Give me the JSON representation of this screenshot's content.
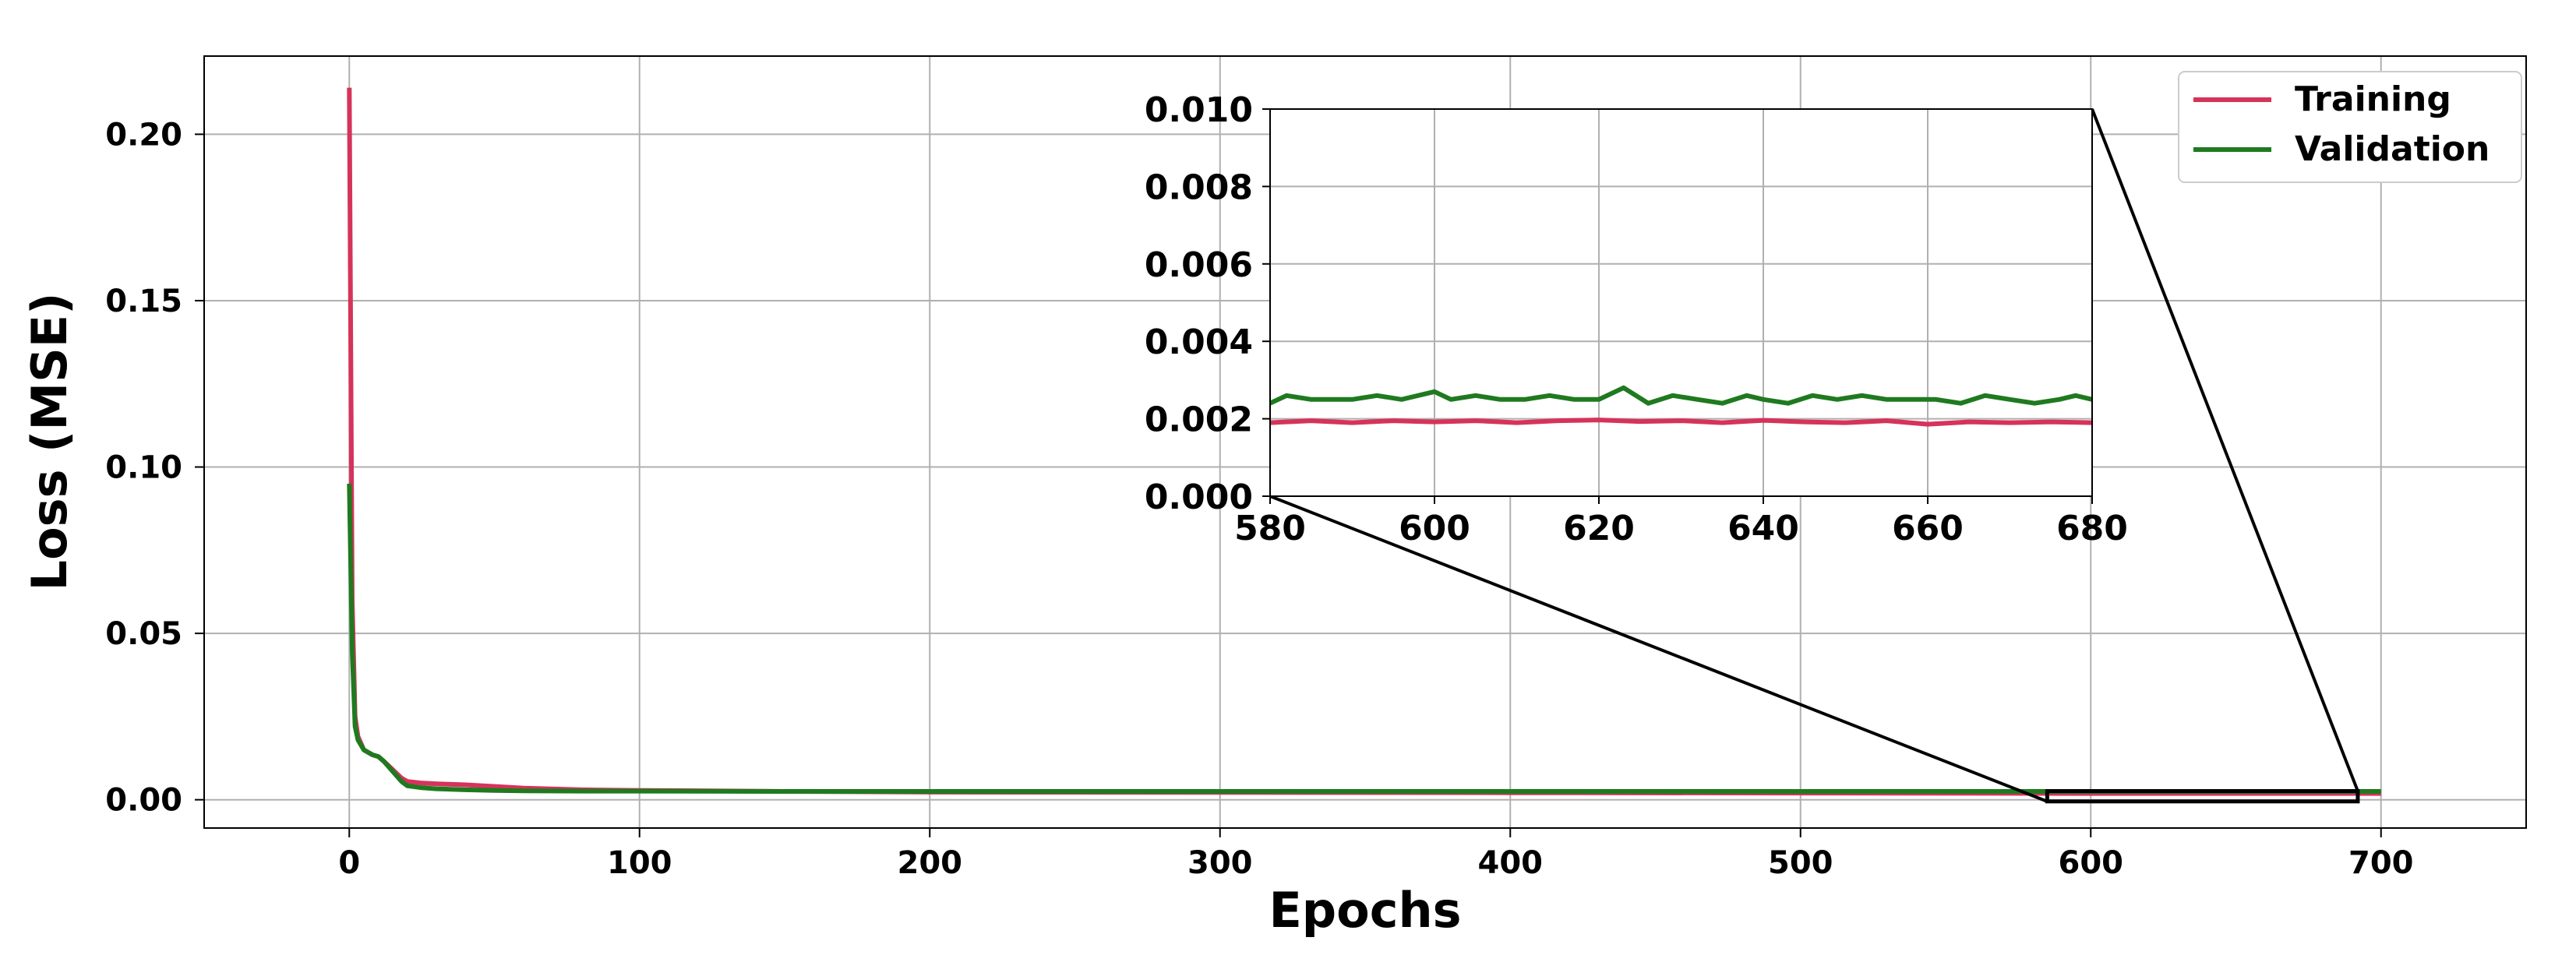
{
  "chart_data": {
    "type": "line",
    "title": "",
    "xlabel": "Epochs",
    "ylabel": "Loss (MSE)",
    "xlim": [
      -50,
      750
    ],
    "ylim": [
      -0.0085,
      0.2235
    ],
    "xticks": [
      0,
      100,
      200,
      300,
      400,
      500,
      600,
      700
    ],
    "yticks": [
      0.0,
      0.05,
      0.1,
      0.15,
      0.2
    ],
    "ytick_labels": [
      "0.00",
      "0.05",
      "0.10",
      "0.15",
      "0.20"
    ],
    "grid": true,
    "legend_position": "top-right",
    "colors": {
      "training": "#d6335a",
      "validation": "#1f7a1f"
    },
    "series": [
      {
        "name": "Training",
        "color": "#d6335a",
        "x": [
          0,
          1,
          2,
          3,
          5,
          8,
          10,
          12,
          15,
          18,
          20,
          25,
          30,
          40,
          50,
          60,
          80,
          100,
          150,
          200,
          300,
          400,
          500,
          600,
          700
        ],
        "y": [
          0.214,
          0.06,
          0.025,
          0.019,
          0.015,
          0.0135,
          0.013,
          0.0115,
          0.009,
          0.0065,
          0.0055,
          0.005,
          0.0048,
          0.0045,
          0.004,
          0.0035,
          0.003,
          0.0028,
          0.0025,
          0.0023,
          0.0022,
          0.0021,
          0.002,
          0.0019,
          0.0019
        ]
      },
      {
        "name": "Validation",
        "color": "#1f7a1f",
        "x": [
          0,
          1,
          2,
          3,
          5,
          8,
          10,
          12,
          15,
          18,
          20,
          25,
          30,
          40,
          50,
          60,
          80,
          100,
          150,
          200,
          300,
          400,
          500,
          600,
          700
        ],
        "y": [
          0.095,
          0.045,
          0.022,
          0.018,
          0.015,
          0.0135,
          0.013,
          0.0115,
          0.0085,
          0.0055,
          0.0042,
          0.0036,
          0.0033,
          0.003,
          0.0028,
          0.0027,
          0.0026,
          0.0026,
          0.0025,
          0.0025,
          0.0025,
          0.0025,
          0.0025,
          0.0025,
          0.0025
        ]
      }
    ],
    "inset": {
      "xlim": [
        580,
        680
      ],
      "ylim": [
        0.0,
        0.01
      ],
      "xticks": [
        580,
        600,
        620,
        640,
        660,
        680
      ],
      "yticks": [
        0.0,
        0.002,
        0.004,
        0.006,
        0.008,
        0.01
      ],
      "ytick_labels": [
        "0.000",
        "0.002",
        "0.004",
        "0.006",
        "0.008",
        "0.010"
      ],
      "grid": true,
      "zoom_region": {
        "x": [
          585,
          692
        ],
        "y": [
          -0.0005,
          0.0026
        ]
      },
      "series": [
        {
          "name": "Training",
          "color": "#d6335a",
          "x": [
            580,
            585,
            590,
            595,
            600,
            605,
            610,
            615,
            620,
            625,
            630,
            635,
            640,
            645,
            650,
            655,
            660,
            665,
            670,
            675,
            680
          ],
          "y": [
            0.0019,
            0.00195,
            0.0019,
            0.00195,
            0.00192,
            0.00195,
            0.0019,
            0.00195,
            0.00197,
            0.00193,
            0.00195,
            0.0019,
            0.00196,
            0.00192,
            0.0019,
            0.00195,
            0.00186,
            0.00192,
            0.0019,
            0.00192,
            0.0019
          ]
        },
        {
          "name": "Validation",
          "color": "#1f7a1f",
          "x": [
            580,
            582,
            585,
            588,
            590,
            593,
            596,
            600,
            602,
            605,
            608,
            611,
            614,
            617,
            620,
            623,
            626,
            629,
            632,
            635,
            638,
            640,
            643,
            646,
            649,
            652,
            655,
            658,
            661,
            664,
            667,
            670,
            673,
            676,
            678,
            680
          ],
          "y": [
            0.0024,
            0.0026,
            0.0025,
            0.0025,
            0.0025,
            0.0026,
            0.0025,
            0.0027,
            0.0025,
            0.0026,
            0.0025,
            0.0025,
            0.0026,
            0.0025,
            0.0025,
            0.0028,
            0.0024,
            0.0026,
            0.0025,
            0.0024,
            0.0026,
            0.0025,
            0.0024,
            0.0026,
            0.0025,
            0.0026,
            0.0025,
            0.0025,
            0.0025,
            0.0024,
            0.0026,
            0.0025,
            0.0024,
            0.0025,
            0.0026,
            0.0025
          ]
        }
      ]
    }
  }
}
